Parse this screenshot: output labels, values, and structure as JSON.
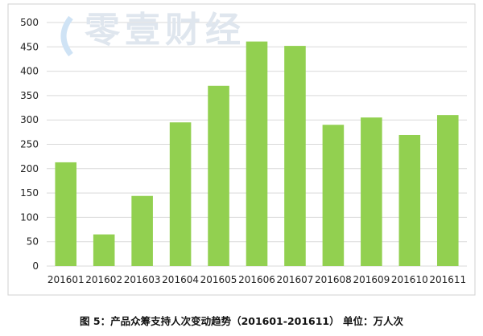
{
  "watermark": {
    "text": "零壹财经",
    "color": "#dfe6ee"
  },
  "caption": {
    "text": "图 5：产品众筹支持人次变动趋势（201601-201611）      单位：万人次"
  },
  "chart_data": {
    "type": "bar",
    "categories": [
      "201601",
      "201602",
      "201603",
      "201604",
      "201605",
      "201606",
      "201607",
      "201608",
      "201609",
      "201610",
      "201611"
    ],
    "values": [
      213,
      65,
      144,
      295,
      370,
      461,
      452,
      290,
      305,
      269,
      310
    ],
    "ylim": [
      0,
      500
    ],
    "yticks": [
      0,
      50,
      100,
      150,
      200,
      250,
      300,
      350,
      400,
      450,
      500
    ],
    "grid": true,
    "legend": "none",
    "bar_color": "#92d050",
    "grid_color": "#d9d9d9"
  }
}
